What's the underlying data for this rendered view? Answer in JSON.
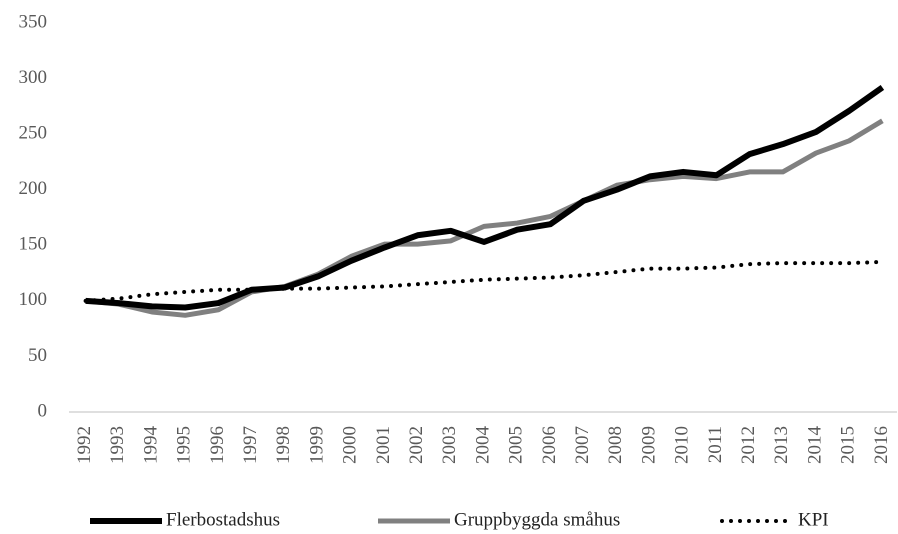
{
  "chart_data": {
    "type": "line",
    "categories": [
      "1992",
      "1993",
      "1994",
      "1995",
      "1996",
      "1997",
      "1998",
      "1999",
      "2000",
      "2001",
      "2002",
      "2003",
      "2004",
      "2005",
      "2006",
      "2007",
      "2008",
      "2009",
      "2010",
      "2011",
      "2012",
      "2013",
      "2014",
      "2015",
      "2016"
    ],
    "series": [
      {
        "name": "Flerbostadshus",
        "color": "#000000",
        "style": "solid",
        "values": [
          100,
          98,
          95,
          94,
          98,
          110,
          112,
          122,
          136,
          148,
          159,
          163,
          153,
          164,
          169,
          190,
          200,
          212,
          216,
          213,
          232,
          241,
          252,
          271,
          292
        ]
      },
      {
        "name": "Gruppbyggda småhus",
        "color": "#808080",
        "style": "solid",
        "values": [
          100,
          97,
          90,
          87,
          92,
          108,
          113,
          124,
          140,
          151,
          151,
          154,
          167,
          170,
          176,
          190,
          204,
          209,
          212,
          210,
          216,
          216,
          233,
          244,
          262
        ]
      },
      {
        "name": "KPI",
        "color": "#000000",
        "style": "dotted",
        "values": [
          100,
          102,
          106,
          108,
          110,
          110,
          111,
          111,
          112,
          113,
          115,
          117,
          119,
          120,
          121,
          123,
          126,
          129,
          129,
          130,
          133,
          134,
          134,
          134,
          135
        ]
      }
    ],
    "ylim": [
      0,
      350
    ],
    "yticks": [
      0,
      50,
      100,
      150,
      200,
      250,
      300,
      350
    ],
    "grid": false,
    "legend": "bottom"
  }
}
